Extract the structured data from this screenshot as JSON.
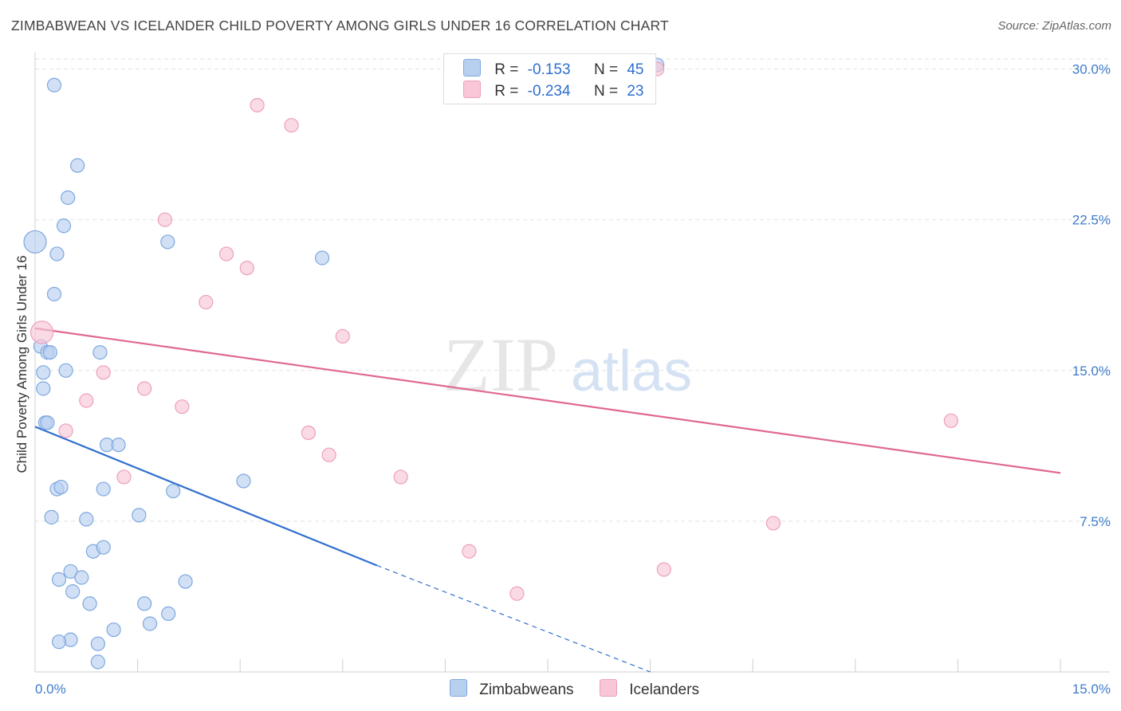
{
  "title": "ZIMBABWEAN VS ICELANDER CHILD POVERTY AMONG GIRLS UNDER 16 CORRELATION CHART",
  "source": "Source: ZipAtlas.com",
  "watermark": {
    "zip": "ZIP",
    "atlas": "atlas"
  },
  "legend": {
    "rows": [
      {
        "r_label": "R =",
        "r_value": "-0.153",
        "n_label": "N =",
        "n_value": "45"
      },
      {
        "r_label": "R =",
        "r_value": "-0.234",
        "n_label": "N =",
        "n_value": "23"
      }
    ]
  },
  "colors": {
    "blue_fill": "#b8d0f0",
    "blue_stroke": "#7ea8e0",
    "blue_line": "#2f6fcf",
    "pink_fill": "#f8c6d6",
    "pink_stroke": "#eea0b8",
    "pink_line": "#e0688f",
    "tick_text": "#3f7ccc",
    "grid": "#e2e2e2"
  },
  "chart_data": {
    "type": "scatter",
    "title": "ZIMBABWEAN VS ICELANDER CHILD POVERTY AMONG GIRLS UNDER 16 CORRELATION CHART",
    "xlabel": "",
    "ylabel": "Child Poverty Among Girls Under 16",
    "xlim": [
      0,
      15
    ],
    "ylim": [
      0,
      30.5
    ],
    "x_tick_labels": [
      {
        "value": 0,
        "label": "0.0%"
      },
      {
        "value": 15,
        "label": "15.0%"
      }
    ],
    "y_ticks": [
      {
        "value": 7.5,
        "label": "7.5%"
      },
      {
        "value": 15,
        "label": "15.0%"
      },
      {
        "value": 22.5,
        "label": "22.5%"
      },
      {
        "value": 30,
        "label": "30.0%"
      }
    ],
    "grid": true,
    "legend_position": "top-center",
    "series": [
      {
        "name": "Zimbabweans",
        "color": "#b8d0f0",
        "points": [
          [
            0.28,
            29.2
          ],
          [
            0.62,
            25.2
          ],
          [
            0.48,
            23.6
          ],
          [
            0.42,
            22.2
          ],
          [
            0.0,
            21.4
          ],
          [
            1.94,
            21.4
          ],
          [
            0.32,
            20.8
          ],
          [
            4.2,
            20.6
          ],
          [
            0.28,
            18.8
          ],
          [
            0.08,
            16.2
          ],
          [
            0.18,
            15.9
          ],
          [
            0.22,
            15.9
          ],
          [
            0.95,
            15.9
          ],
          [
            0.12,
            14.9
          ],
          [
            0.45,
            15.0
          ],
          [
            0.12,
            14.1
          ],
          [
            0.15,
            12.4
          ],
          [
            0.18,
            12.4
          ],
          [
            1.05,
            11.3
          ],
          [
            1.22,
            11.3
          ],
          [
            0.32,
            9.1
          ],
          [
            0.38,
            9.2
          ],
          [
            1.0,
            9.1
          ],
          [
            2.02,
            9.0
          ],
          [
            3.05,
            9.5
          ],
          [
            0.24,
            7.7
          ],
          [
            0.75,
            7.6
          ],
          [
            1.52,
            7.8
          ],
          [
            0.85,
            6.0
          ],
          [
            1.0,
            6.2
          ],
          [
            0.52,
            5.0
          ],
          [
            0.35,
            4.6
          ],
          [
            0.68,
            4.7
          ],
          [
            2.2,
            4.5
          ],
          [
            0.55,
            4.0
          ],
          [
            0.8,
            3.4
          ],
          [
            1.6,
            3.4
          ],
          [
            1.95,
            2.9
          ],
          [
            1.68,
            2.4
          ],
          [
            1.15,
            2.1
          ],
          [
            0.52,
            1.6
          ],
          [
            0.35,
            1.5
          ],
          [
            0.92,
            1.4
          ],
          [
            0.92,
            0.5
          ],
          [
            9.1,
            30.2
          ]
        ],
        "trend": {
          "x": [
            0.0,
            5.0
          ],
          "y": [
            12.2,
            5.3
          ],
          "dashed_to": [
            9.0,
            0.0
          ]
        }
      },
      {
        "name": "Icelanders",
        "color": "#f8c6d6",
        "points": [
          [
            9.1,
            30.0
          ],
          [
            3.25,
            28.2
          ],
          [
            3.75,
            27.2
          ],
          [
            1.9,
            22.5
          ],
          [
            2.8,
            20.8
          ],
          [
            3.1,
            20.1
          ],
          [
            2.5,
            18.4
          ],
          [
            0.1,
            16.9
          ],
          [
            4.5,
            16.7
          ],
          [
            1.0,
            14.9
          ],
          [
            1.6,
            14.1
          ],
          [
            0.75,
            13.5
          ],
          [
            2.15,
            13.2
          ],
          [
            13.4,
            12.5
          ],
          [
            0.45,
            12.0
          ],
          [
            4.0,
            11.9
          ],
          [
            4.3,
            10.8
          ],
          [
            1.3,
            9.7
          ],
          [
            5.35,
            9.7
          ],
          [
            10.8,
            7.4
          ],
          [
            6.35,
            6.0
          ],
          [
            9.2,
            5.1
          ],
          [
            7.05,
            3.9
          ]
        ],
        "trend": {
          "x": [
            0.0,
            15.0
          ],
          "y": [
            17.1,
            9.9
          ]
        }
      }
    ]
  }
}
